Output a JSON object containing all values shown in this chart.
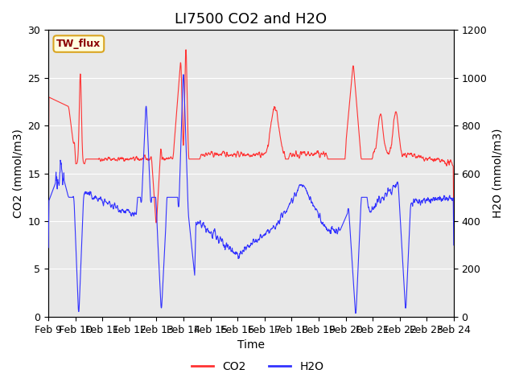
{
  "title": "LI7500 CO2 and H2O",
  "xlabel": "Time",
  "ylabel_left": "CO2 (mmol/m3)",
  "ylabel_right": "H2O (mmol/m3)",
  "legend_label": "TW_flux",
  "legend_series": [
    "CO2",
    "H2O"
  ],
  "co2_color": "#FF3333",
  "h2o_color": "#3333FF",
  "background_color": "#E8E8E8",
  "ylim_left": [
    0,
    30
  ],
  "ylim_right": [
    0,
    1200
  ],
  "x_ticks": [
    "Feb 9",
    "Feb 10",
    "Feb 11",
    "Feb 12",
    "Feb 13",
    "Feb 14",
    "Feb 15",
    "Feb 16",
    "Feb 17",
    "Feb 18",
    "Feb 19",
    "Feb 20",
    "Feb 21",
    "Feb 22",
    "Feb 23",
    "Feb 24"
  ],
  "title_fontsize": 13,
  "axis_fontsize": 10,
  "tick_fontsize": 9
}
